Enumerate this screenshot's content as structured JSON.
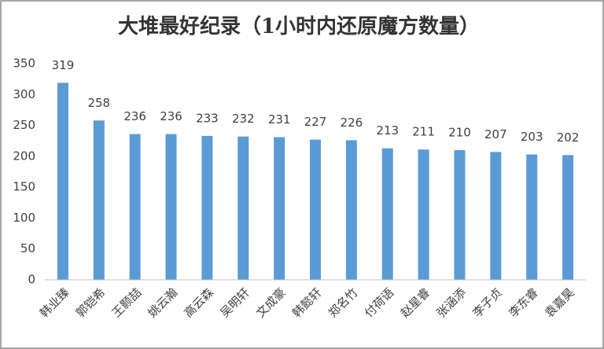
{
  "chart_data": {
    "type": "bar",
    "title": "大堆最好纪录（1小时内还原魔方数量）",
    "categories": [
      "韩业臻",
      "郭铠希",
      "王颢喆",
      "姚云瀚",
      "高云森",
      "吴明轩",
      "文成豪",
      "韩懿轩",
      "郑名竹",
      "付荷语",
      "赵星睿",
      "张涵添",
      "李子贞",
      "李东睿",
      "袁嘉昊"
    ],
    "values": [
      319,
      258,
      236,
      236,
      233,
      232,
      231,
      227,
      226,
      213,
      211,
      210,
      207,
      203,
      202
    ],
    "color": "#5b9bd5",
    "ylim": [
      0,
      350
    ],
    "yticks": [
      0,
      50,
      100,
      150,
      200,
      250,
      300,
      350
    ],
    "grid": false
  }
}
